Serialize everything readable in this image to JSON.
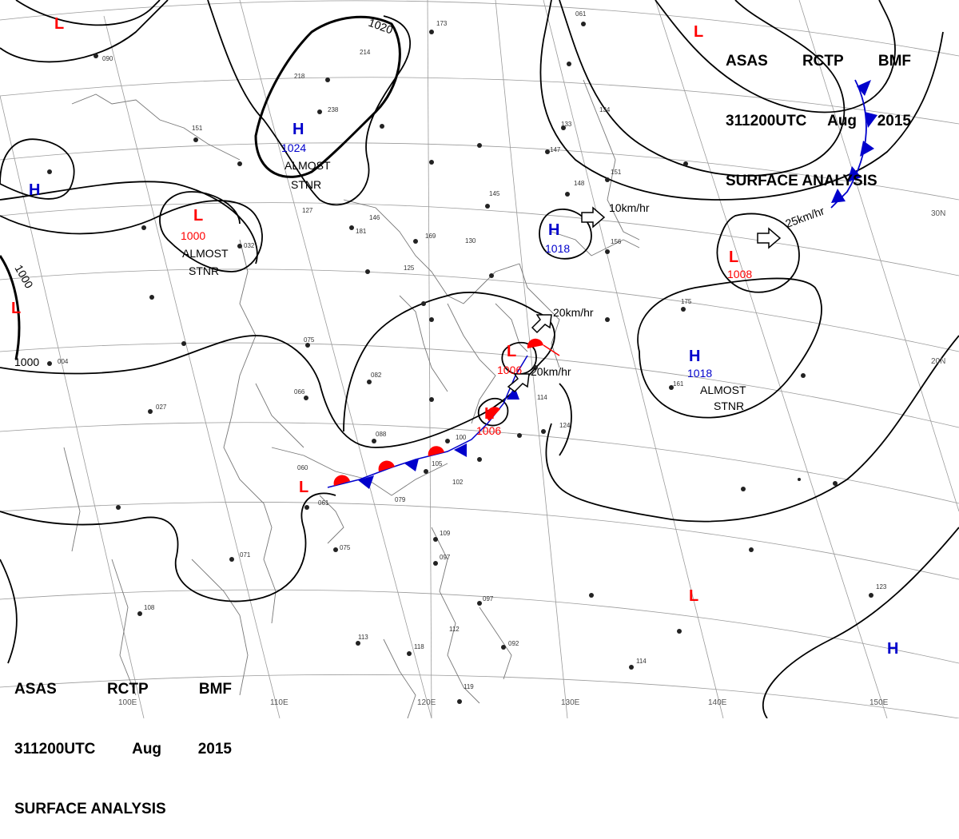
{
  "header": {
    "line1": [
      "ASAS",
      "RCTP",
      "BMF"
    ],
    "line2": [
      "311200UTC",
      "Aug",
      "2015"
    ],
    "line3": "SURFACE ANALYSIS"
  },
  "footer": {
    "line1": [
      "ASAS",
      "RCTP",
      "BMF"
    ],
    "line2": [
      "311200UTC",
      "Aug",
      "2015"
    ],
    "line3": "SURFACE ANALYSIS"
  },
  "isobars": [
    {
      "value": "1020"
    },
    {
      "value": "1000"
    },
    {
      "value": "1000"
    }
  ],
  "pressure_centers": [
    {
      "type": "H",
      "value": "1024",
      "note": [
        "ALMOST",
        "STNR"
      ],
      "color": "#0000cc"
    },
    {
      "type": "L",
      "value": "1000",
      "note": [
        "ALMOST",
        "STNR"
      ],
      "color": "#ff0000"
    },
    {
      "type": "H",
      "value": "1018",
      "motion": "10km/hr",
      "color": "#0000cc"
    },
    {
      "type": "L",
      "value": "1008",
      "motion": "25km/hr",
      "color": "#ff0000"
    },
    {
      "type": "H",
      "value": "1018",
      "note": [
        "ALMOST",
        "STNR"
      ],
      "color": "#0000cc"
    },
    {
      "type": "L",
      "value": "1006",
      "motion": "20km/hr",
      "color": "#ff0000"
    },
    {
      "type": "L",
      "value": "1006",
      "motion": "20km/hr",
      "color": "#ff0000"
    },
    {
      "type": "L",
      "color": "#ff0000"
    },
    {
      "type": "L",
      "color": "#ff0000"
    },
    {
      "type": "L",
      "color": "#ff0000"
    },
    {
      "type": "L",
      "color": "#ff0000"
    },
    {
      "type": "H",
      "color": "#0000cc"
    },
    {
      "type": "H",
      "color": "#0000cc"
    }
  ],
  "grid_labels": {
    "lon": [
      "100E",
      "110E",
      "120E",
      "130E",
      "140E",
      "150E"
    ],
    "lat": [
      "30N",
      "20N"
    ]
  },
  "station_sample": [
    "173",
    "214",
    "218",
    "238",
    "151",
    "090",
    "032",
    "127",
    "146",
    "181",
    "125",
    "169",
    "130",
    "145",
    "147",
    "148",
    "151",
    "133",
    "061",
    "134",
    "156",
    "075",
    "082",
    "066",
    "088",
    "100",
    "105",
    "102",
    "079",
    "061",
    "060",
    "075",
    "071",
    "108",
    "113",
    "118",
    "119",
    "092",
    "097",
    "109",
    "097",
    "112",
    "114",
    "123",
    "175",
    "161",
    "114",
    "124",
    "027",
    "004"
  ],
  "colors": {
    "high": "#0000cc",
    "low": "#ff0000",
    "warm_front": "#ff0000",
    "cold_front": "#0000cc",
    "isobar": "#000000",
    "grid": "#9a9a9a",
    "coast": "#777777"
  }
}
